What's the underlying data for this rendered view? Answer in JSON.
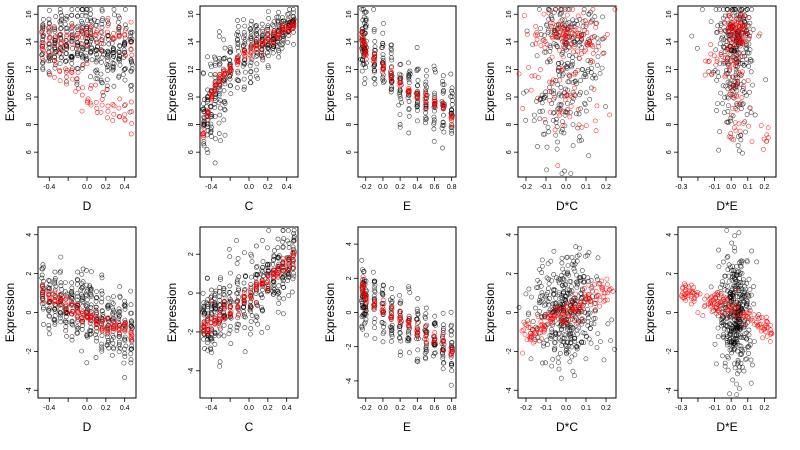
{
  "figure": {
    "colors": {
      "observed": "#000000",
      "fitted": "#ff0000",
      "axis": "#000000"
    },
    "point_symbol": "open-circle"
  },
  "chart_data": [
    {
      "type": "scatter",
      "row": 1,
      "col": 1,
      "xlabel": "D",
      "ylabel": "Expression",
      "xlim": [
        -0.52,
        0.52
      ],
      "ylim": [
        4.2,
        16.6
      ],
      "xticks": [
        -0.4,
        -0.2,
        0.0,
        0.2,
        0.4
      ],
      "xticklabels": [
        "-0.4",
        "",
        "0.0",
        "0.2",
        "0.4"
      ],
      "yticks": [
        6,
        8,
        10,
        12,
        14,
        16
      ],
      "yticklabels": [
        "6",
        "8",
        "10",
        "12",
        "14",
        "16"
      ],
      "observed": {
        "x_columns": [
          -0.47,
          -0.4,
          -0.34,
          -0.28,
          -0.22,
          -0.16,
          -0.1,
          -0.05,
          0.0,
          0.04,
          0.1,
          0.16,
          0.22,
          0.28,
          0.34,
          0.4,
          0.47
        ],
        "y_center": 14.0,
        "y_spread": 2.3,
        "trend": -4.0
      },
      "fitted": {
        "x_columns": [
          -0.47,
          -0.4,
          -0.34,
          -0.28,
          -0.22,
          -0.16,
          -0.1,
          -0.05,
          0.0,
          0.04,
          0.1,
          0.16,
          0.22,
          0.28,
          0.34,
          0.4,
          0.47
        ],
        "upper_level": 14.3,
        "lower_trend": [
          [
            -0.45,
            13.5
          ],
          [
            -0.2,
            11.8
          ],
          [
            0.0,
            10.2
          ],
          [
            0.2,
            9.2
          ],
          [
            0.47,
            8.5
          ]
        ]
      }
    },
    {
      "type": "scatter",
      "row": 1,
      "col": 2,
      "xlabel": "C",
      "ylabel": "Expression",
      "xlim": [
        -0.52,
        0.52
      ],
      "ylim": [
        4.2,
        16.6
      ],
      "xticks": [
        -0.4,
        -0.2,
        0.0,
        0.2,
        0.4
      ],
      "xticklabels": [
        "-0.4",
        "",
        "0.0",
        "0.2",
        "0.4"
      ],
      "yticks": [
        6,
        8,
        10,
        12,
        14,
        16
      ],
      "yticklabels": [
        "6",
        "8",
        "10",
        "12",
        "14",
        "16"
      ],
      "observed": {
        "x_columns": [
          -0.48,
          -0.44,
          -0.4,
          -0.36,
          -0.31,
          -0.26,
          -0.2,
          -0.12,
          -0.05,
          0.02,
          0.08,
          0.14,
          0.2,
          0.26,
          0.31,
          0.36,
          0.42,
          0.47
        ],
        "trend_points": [
          [
            -0.48,
            8.5
          ],
          [
            -0.3,
            11.0
          ],
          [
            -0.1,
            12.5
          ],
          [
            0.1,
            13.8
          ],
          [
            0.3,
            14.5
          ],
          [
            0.48,
            15.4
          ]
        ],
        "y_spread_left": 3.5,
        "y_spread_right": 0.8
      },
      "fitted": {
        "trend_points": [
          [
            -0.48,
            7.5
          ],
          [
            -0.4,
            10.0
          ],
          [
            -0.3,
            11.5
          ],
          [
            -0.15,
            12.5
          ],
          [
            0.0,
            13.5
          ],
          [
            0.15,
            14.0
          ],
          [
            0.3,
            14.5
          ],
          [
            0.48,
            15.3
          ]
        ]
      }
    },
    {
      "type": "scatter",
      "row": 1,
      "col": 3,
      "xlabel": "E",
      "ylabel": "Expression",
      "xlim": [
        -0.29,
        0.85
      ],
      "ylim": [
        4.2,
        16.6
      ],
      "xticks": [
        -0.2,
        0.0,
        0.2,
        0.4,
        0.6,
        0.8
      ],
      "xticklabels": [
        "-0.2",
        "0.0",
        "0.2",
        "0.4",
        "0.6",
        "0.8"
      ],
      "yticks": [
        6,
        8,
        10,
        12,
        14,
        16
      ],
      "yticklabels": [
        "6",
        "8",
        "10",
        "12",
        "14",
        "16"
      ],
      "observed": {
        "x_columns": [
          -0.24,
          -0.22,
          -0.2,
          -0.1,
          0.0,
          0.1,
          0.2,
          0.3,
          0.4,
          0.5,
          0.6,
          0.7,
          0.8
        ],
        "trend_points": [
          [
            -0.24,
            14.0
          ],
          [
            0.0,
            12.5
          ],
          [
            0.2,
            11.0
          ],
          [
            0.4,
            10.0
          ],
          [
            0.6,
            9.5
          ],
          [
            0.8,
            9.0
          ]
        ],
        "y_spread": 2.2
      },
      "fitted": {
        "trend_points": [
          [
            -0.24,
            14.5
          ],
          [
            -0.2,
            13.2
          ],
          [
            0.0,
            12.2
          ],
          [
            0.2,
            11.0
          ],
          [
            0.4,
            10.0
          ],
          [
            0.6,
            9.5
          ],
          [
            0.8,
            8.5
          ]
        ]
      }
    },
    {
      "type": "scatter",
      "row": 1,
      "col": 4,
      "xlabel": "D*C",
      "ylabel": "Expression",
      "xlim": [
        -0.24,
        0.25
      ],
      "ylim": [
        4.2,
        16.6
      ],
      "xticks": [
        -0.2,
        -0.1,
        0.0,
        0.1,
        0.2
      ],
      "xticklabels": [
        "-0.2",
        "-0.1",
        "0.0",
        "0.1",
        "0.2"
      ],
      "yticks": [
        6,
        8,
        10,
        12,
        14,
        16
      ],
      "yticklabels": [
        "6",
        "8",
        "10",
        "12",
        "14",
        "16"
      ],
      "observed": {
        "clusters": [
          [
            0.0,
            14.5,
            0.09,
            1.1,
            110
          ],
          [
            0.0,
            11.0,
            0.06,
            2.6,
            90
          ],
          [
            -0.08,
            9.0,
            0.07,
            1.5,
            40
          ],
          [
            0.08,
            12.0,
            0.06,
            1.5,
            40
          ]
        ]
      },
      "fitted": {
        "clusters": [
          [
            -0.02,
            14.6,
            0.08,
            0.5,
            50
          ],
          [
            0.0,
            11.5,
            0.1,
            2.8,
            80
          ],
          [
            0.1,
            14.0,
            0.07,
            1.0,
            30
          ]
        ]
      }
    },
    {
      "type": "scatter",
      "row": 1,
      "col": 5,
      "xlabel": "D*E",
      "ylabel": "Expression",
      "xlim": [
        -0.32,
        0.27
      ],
      "ylim": [
        4.2,
        16.6
      ],
      "xticks": [
        -0.3,
        -0.2,
        -0.1,
        0.0,
        0.1,
        0.2
      ],
      "xticklabels": [
        "-0.3",
        "",
        "-0.1",
        "0.0",
        "0.1",
        "0.2"
      ],
      "yticks": [
        6,
        8,
        10,
        12,
        14,
        16
      ],
      "yticklabels": [
        "6",
        "8",
        "10",
        "12",
        "14",
        "16"
      ],
      "observed": {
        "clusters": [
          [
            0.03,
            14.5,
            0.05,
            1.1,
            140
          ],
          [
            0.03,
            10.5,
            0.05,
            2.2,
            90
          ],
          [
            0.0,
            12.5,
            0.08,
            2.5,
            60
          ]
        ]
      },
      "fitted": {
        "clusters": [
          [
            0.03,
            14.5,
            0.04,
            0.9,
            80
          ],
          [
            0.03,
            10.5,
            0.04,
            1.8,
            50
          ],
          [
            -0.1,
            12.5,
            0.05,
            0.6,
            15
          ],
          [
            0.22,
            7.0,
            0.03,
            0.6,
            8
          ]
        ]
      }
    },
    {
      "type": "scatter",
      "row": 2,
      "col": 1,
      "xlabel": "D",
      "ylabel": "Expression",
      "xlim": [
        -0.52,
        0.52
      ],
      "ylim": [
        -4.4,
        4.4
      ],
      "xticks": [
        -0.4,
        -0.2,
        0.0,
        0.2,
        0.4
      ],
      "xticklabels": [
        "-0.4",
        "",
        "0.0",
        "0.2",
        "0.4"
      ],
      "yticks": [
        -4,
        -2,
        0,
        2,
        4
      ],
      "yticklabels": [
        "-4",
        "-2",
        "0",
        "2",
        "4"
      ],
      "observed": {
        "x_columns": [
          -0.47,
          -0.4,
          -0.34,
          -0.28,
          -0.22,
          -0.16,
          -0.1,
          -0.05,
          0.0,
          0.04,
          0.1,
          0.16,
          0.22,
          0.28,
          0.34,
          0.4,
          0.47
        ],
        "trend_points": [
          [
            -0.48,
            1.0
          ],
          [
            0.0,
            0.0
          ],
          [
            0.48,
            -1.0
          ]
        ],
        "y_spread": 1.6
      },
      "fitted": {
        "trend_points": [
          [
            -0.48,
            1.0
          ],
          [
            -0.2,
            0.5
          ],
          [
            0.0,
            -0.2
          ],
          [
            0.2,
            -0.6
          ],
          [
            0.48,
            -1.0
          ]
        ]
      }
    },
    {
      "type": "scatter",
      "row": 2,
      "col": 2,
      "xlabel": "C",
      "ylabel": "Expression",
      "xlim": [
        -0.52,
        0.52
      ],
      "ylim": [
        -5.4,
        3.4
      ],
      "xticks": [
        -0.4,
        -0.2,
        0.0,
        0.2,
        0.4
      ],
      "xticklabels": [
        "-0.4",
        "",
        "0.0",
        "0.2",
        "0.4"
      ],
      "yticks": [
        -4,
        -2,
        0,
        2
      ],
      "yticklabels": [
        "-4",
        "-2",
        "0",
        "2"
      ],
      "observed": {
        "x_columns": [
          -0.48,
          -0.44,
          -0.4,
          -0.36,
          -0.31,
          -0.26,
          -0.2,
          -0.12,
          -0.05,
          0.02,
          0.08,
          0.14,
          0.2,
          0.26,
          0.31,
          0.36,
          0.42,
          0.47
        ],
        "trend_points": [
          [
            -0.48,
            -1.6
          ],
          [
            -0.2,
            -0.7
          ],
          [
            0.0,
            -0.1
          ],
          [
            0.2,
            0.6
          ],
          [
            0.48,
            1.7
          ]
        ],
        "y_spread": 1.8
      },
      "fitted": {
        "trend_points": [
          [
            -0.48,
            -1.8
          ],
          [
            -0.2,
            -0.8
          ],
          [
            0.0,
            -0.1
          ],
          [
            0.2,
            0.6
          ],
          [
            0.48,
            1.8
          ]
        ]
      }
    },
    {
      "type": "scatter",
      "row": 2,
      "col": 3,
      "xlabel": "E",
      "ylabel": "Expression",
      "xlim": [
        -0.29,
        0.85
      ],
      "ylim": [
        -5.0,
        5.0
      ],
      "xticks": [
        -0.2,
        0.0,
        0.2,
        0.4,
        0.6,
        0.8
      ],
      "xticklabels": [
        "-0.2",
        "0.0",
        "0.2",
        "0.4",
        "0.6",
        "0.8"
      ],
      "yticks": [
        -4,
        -2,
        0,
        2,
        4
      ],
      "yticklabels": [
        "-4",
        "-2",
        "0",
        "2",
        "4"
      ],
      "observed": {
        "x_columns": [
          -0.24,
          -0.22,
          -0.2,
          -0.1,
          0.0,
          0.1,
          0.2,
          0.3,
          0.4,
          0.5,
          0.6,
          0.7,
          0.8
        ],
        "trend_points": [
          [
            -0.24,
            0.8
          ],
          [
            0.0,
            0.0
          ],
          [
            0.4,
            -1.0
          ],
          [
            0.8,
            -2.0
          ]
        ],
        "y_spread": 1.6
      },
      "fitted": {
        "trend_points": [
          [
            -0.24,
            1.5
          ],
          [
            -0.2,
            0.8
          ],
          [
            0.0,
            0.3
          ],
          [
            0.2,
            -0.3
          ],
          [
            0.4,
            -1.0
          ],
          [
            0.6,
            -1.6
          ],
          [
            0.8,
            -2.2
          ]
        ]
      }
    },
    {
      "type": "scatter",
      "row": 2,
      "col": 4,
      "xlabel": "D*C",
      "ylabel": "Expression",
      "xlim": [
        -0.24,
        0.25
      ],
      "ylim": [
        -4.4,
        4.4
      ],
      "xticks": [
        -0.2,
        -0.1,
        0.0,
        0.1,
        0.2
      ],
      "xticklabels": [
        "-0.2",
        "-0.1",
        "0.0",
        "0.1",
        "0.2"
      ],
      "yticks": [
        -4,
        -2,
        0,
        2,
        4
      ],
      "yticklabels": [
        "-4",
        "-2",
        "0",
        "2",
        "4"
      ],
      "observed": {
        "clusters": [
          [
            0.0,
            0.0,
            0.08,
            1.4,
            400
          ]
        ]
      },
      "fitted": {
        "trend_points": [
          [
            -0.22,
            -1.2
          ],
          [
            0.0,
            0.0
          ],
          [
            0.24,
            1.3
          ]
        ],
        "y_spread": 0.35
      }
    },
    {
      "type": "scatter",
      "row": 2,
      "col": 5,
      "xlabel": "D*E",
      "ylabel": "Expression",
      "xlim": [
        -0.32,
        0.27
      ],
      "ylim": [
        -4.4,
        4.4
      ],
      "xticks": [
        -0.3,
        -0.2,
        -0.1,
        0.0,
        0.1,
        0.2
      ],
      "xticklabels": [
        "-0.3",
        "",
        "-0.1",
        "0.0",
        "0.1",
        "0.2"
      ],
      "yticks": [
        -4,
        -2,
        0,
        2,
        4
      ],
      "yticklabels": [
        "-4",
        "-2",
        "0",
        "2",
        "4"
      ],
      "observed": {
        "clusters": [
          [
            0.03,
            0.0,
            0.05,
            1.5,
            380
          ]
        ]
      },
      "fitted": {
        "trend_points": [
          [
            -0.3,
            1.0
          ],
          [
            -0.1,
            0.5
          ],
          [
            0.0,
            0.2
          ],
          [
            0.1,
            -0.3
          ],
          [
            0.25,
            -0.9
          ]
        ],
        "y_spread": 0.3
      }
    }
  ]
}
